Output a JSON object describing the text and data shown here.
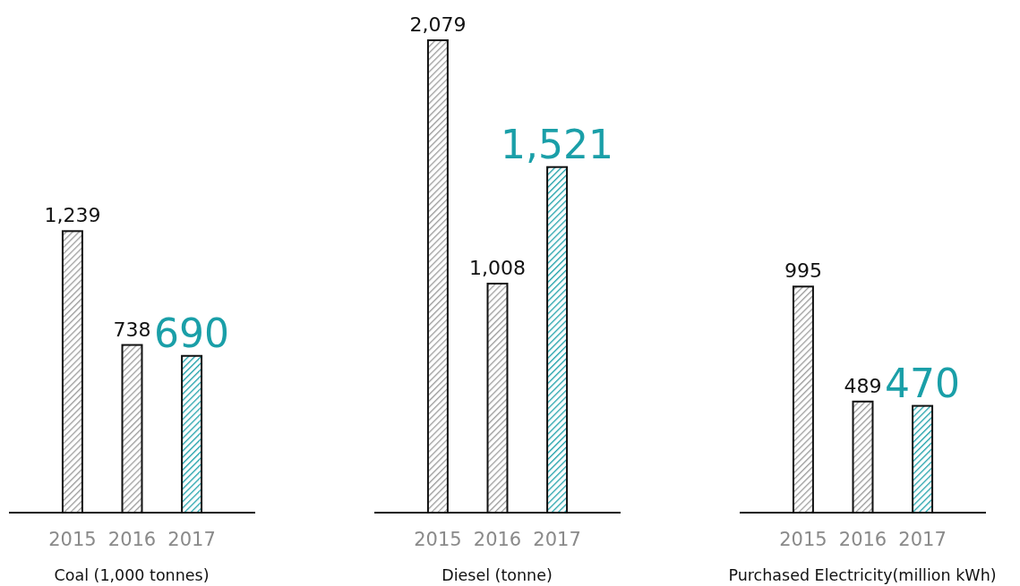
{
  "chart_data": [
    {
      "type": "bar",
      "xlabel": "Coal (1,000 tonnes)",
      "categories": [
        "2015",
        "2016",
        "2017"
      ],
      "values": [
        1239,
        738,
        690
      ],
      "value_labels": [
        "1,239",
        "738",
        "690"
      ],
      "colors": [
        "#9a9a9a",
        "#9a9a9a",
        "#1a9fa8"
      ]
    },
    {
      "type": "bar",
      "xlabel": "Diesel (tonne)",
      "categories": [
        "2015",
        "2016",
        "2017"
      ],
      "values": [
        2079,
        1008,
        1521
      ],
      "value_labels": [
        "2,079",
        "1,008",
        "1,521"
      ],
      "colors": [
        "#9a9a9a",
        "#9a9a9a",
        "#1a9fa8"
      ]
    },
    {
      "type": "bar",
      "xlabel": "Purchased Electricity(million kWh)",
      "categories": [
        "2015",
        "2016",
        "2017"
      ],
      "values": [
        995,
        489,
        470
      ],
      "value_labels": [
        "995",
        "489",
        "470"
      ],
      "colors": [
        "#9a9a9a",
        "#9a9a9a",
        "#1a9fa8"
      ]
    }
  ]
}
